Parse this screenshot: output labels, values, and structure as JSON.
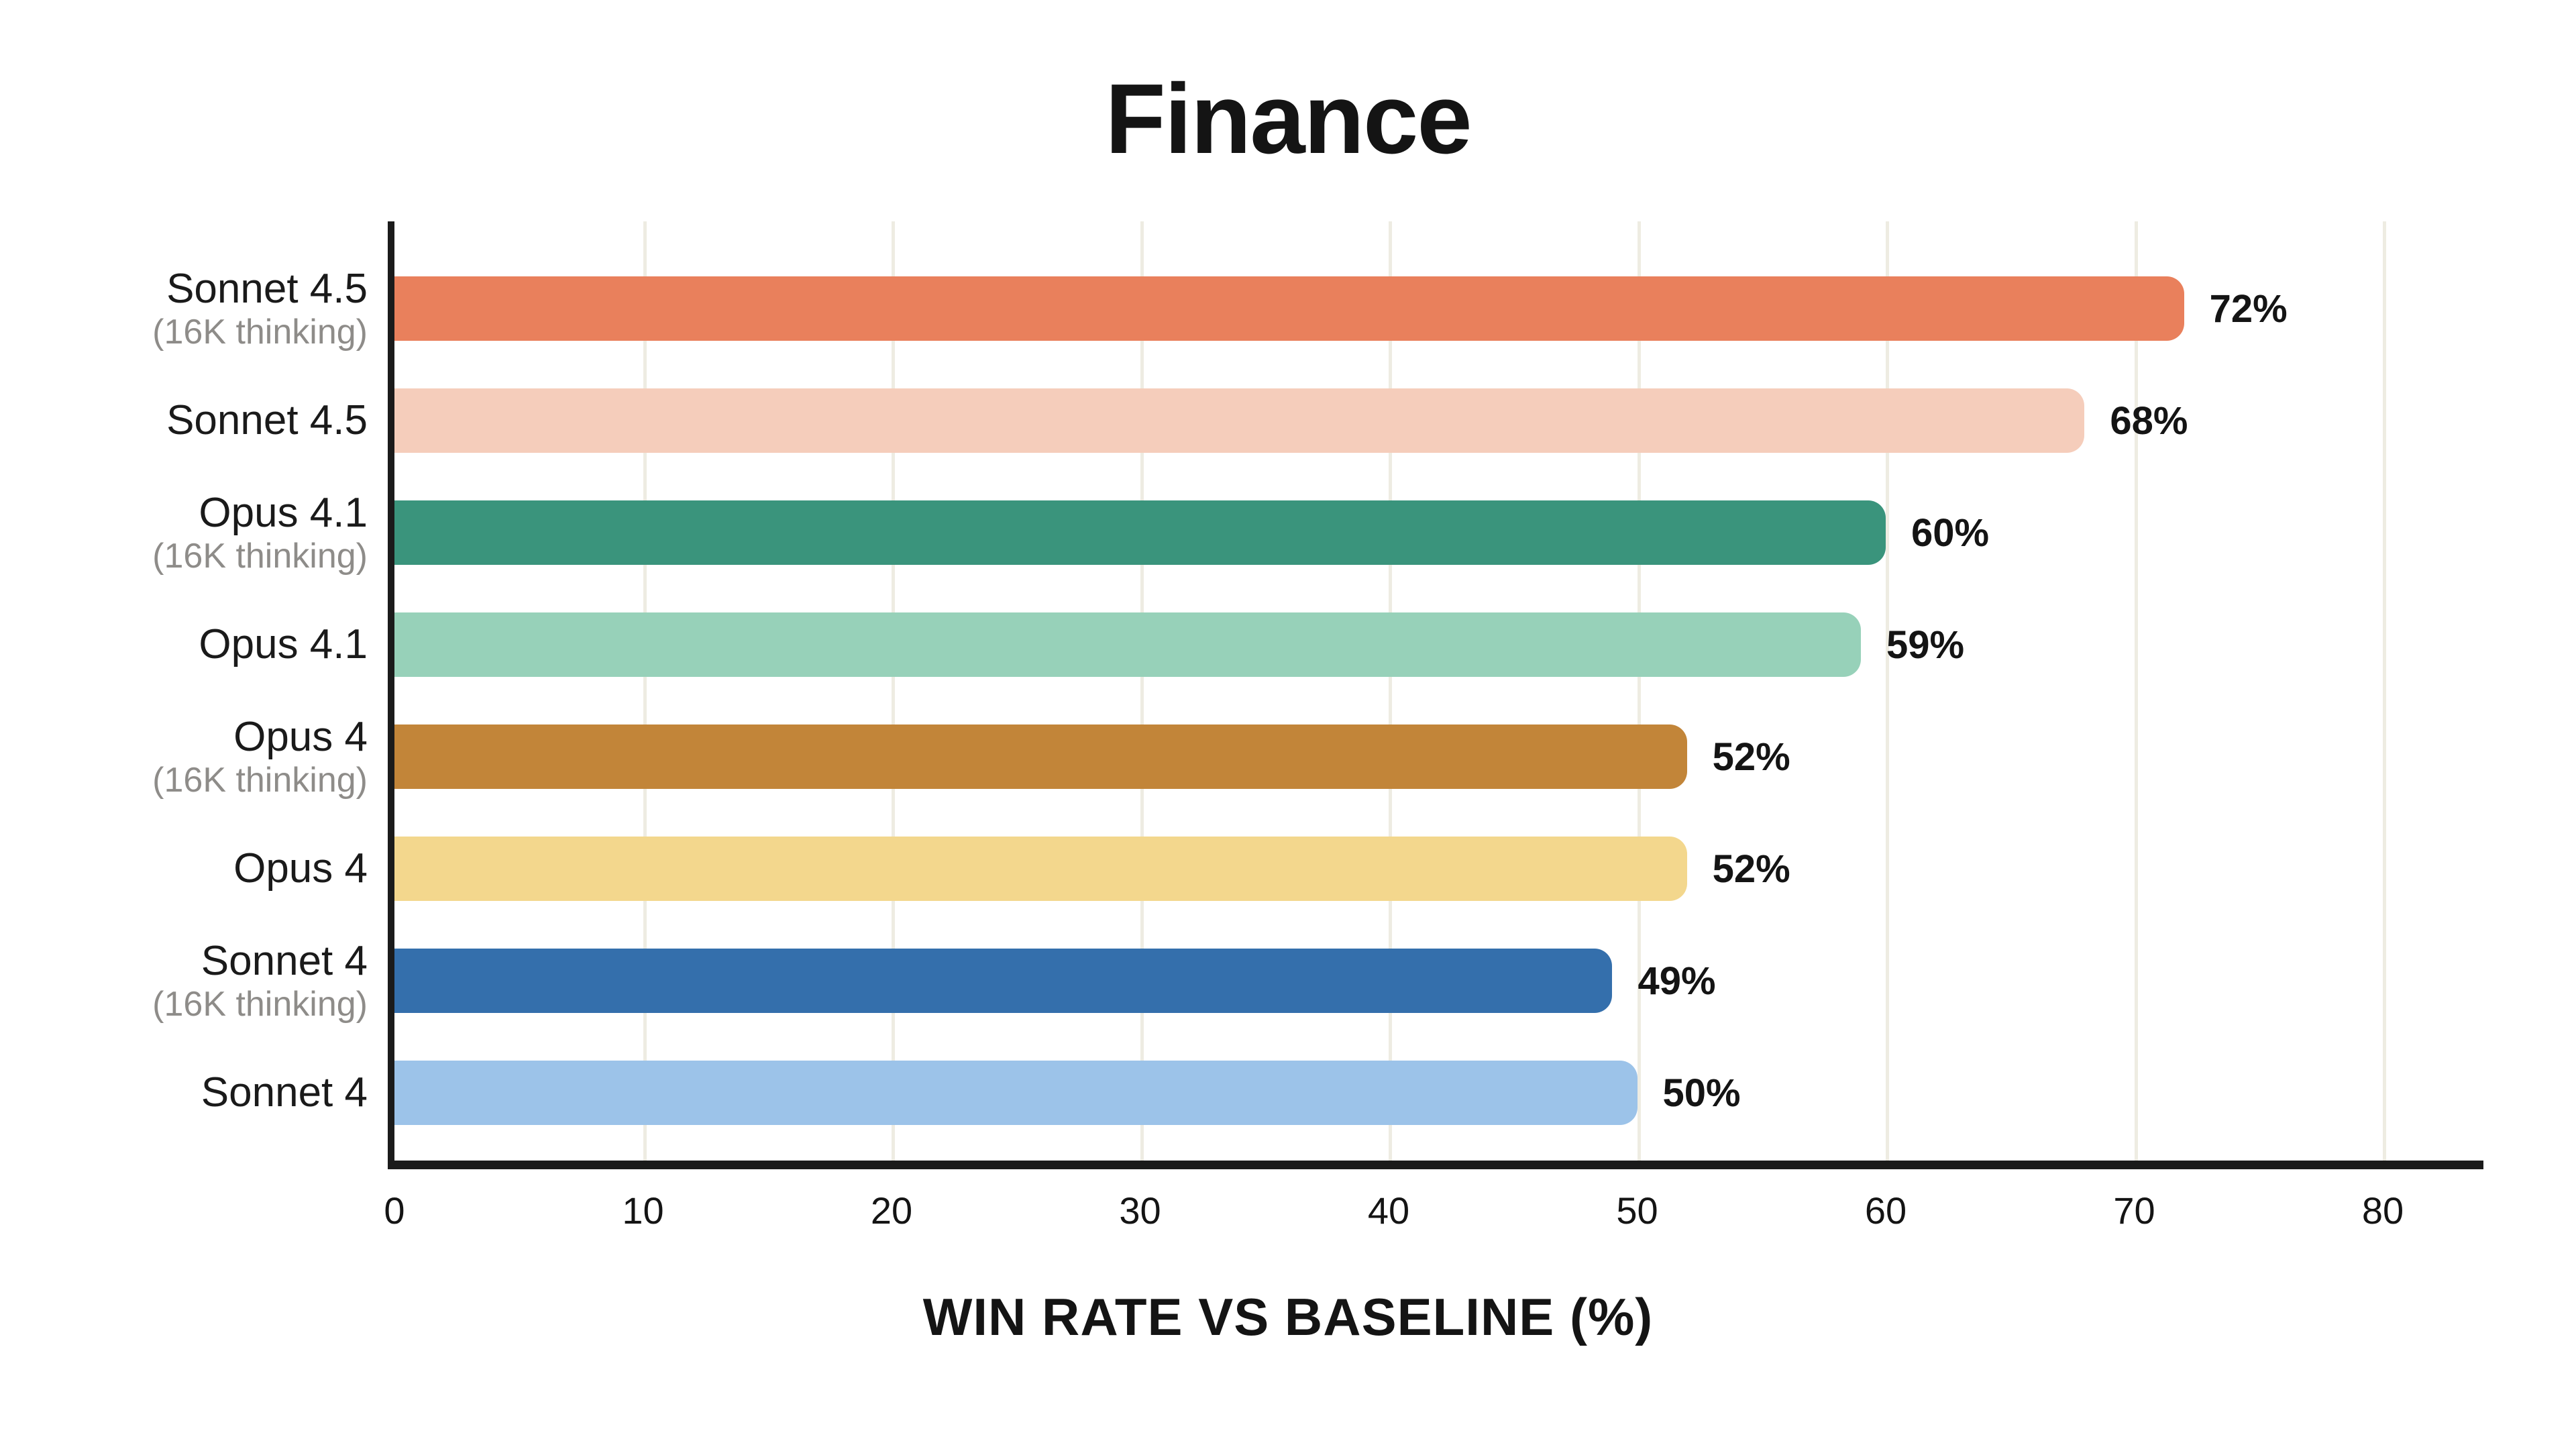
{
  "chart_data": {
    "type": "bar",
    "orientation": "horizontal",
    "title": "Finance",
    "xlabel": "WIN RATE VS BASELINE (%)",
    "xlim": [
      0,
      80
    ],
    "xticks": [
      0,
      10,
      20,
      30,
      40,
      50,
      60,
      70,
      80
    ],
    "grid": "vertical gridlines at each x tick",
    "legend": "none",
    "categories": [
      {
        "label": "Sonnet 4.5",
        "sublabel": "(16K thinking)"
      },
      {
        "label": "Sonnet 4.5",
        "sublabel": ""
      },
      {
        "label": "Opus 4.1",
        "sublabel": "(16K thinking)"
      },
      {
        "label": "Opus 4.1",
        "sublabel": ""
      },
      {
        "label": "Opus 4",
        "sublabel": "(16K thinking)"
      },
      {
        "label": "Opus 4",
        "sublabel": ""
      },
      {
        "label": "Sonnet 4",
        "sublabel": "(16K thinking)"
      },
      {
        "label": "Sonnet 4",
        "sublabel": ""
      }
    ],
    "values": [
      72,
      68,
      60,
      59,
      52,
      52,
      49,
      50
    ],
    "value_labels": [
      "72%",
      "68%",
      "60%",
      "59%",
      "52%",
      "52%",
      "49%",
      "50%"
    ],
    "bar_colors": [
      "#E9805C",
      "#F5CDBB",
      "#3A947C",
      "#97D1B9",
      "#C28539",
      "#F3D78D",
      "#346FAC",
      "#9CC3E9"
    ],
    "colors": {
      "background": "#FFFFFF",
      "axis": "#1B1B1B",
      "gridline": "#EEECE2",
      "label_text": "#1A1A1A",
      "sublabel_text": "#8E8C89",
      "value_text": "#141414"
    }
  }
}
